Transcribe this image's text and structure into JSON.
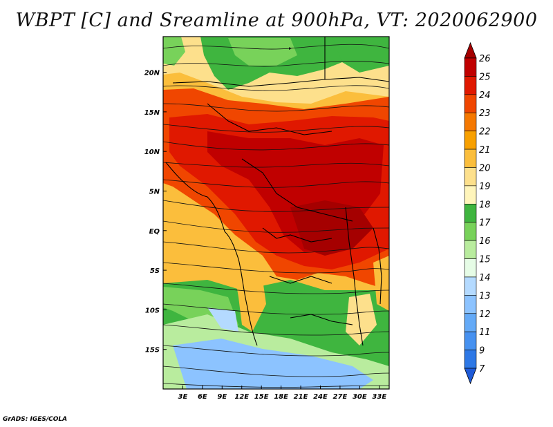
{
  "title": "WBPT [C] and Sreamline at 900hPa, VT: 2020062900",
  "footer": "GrADS: IGES/COLA",
  "map": {
    "lat_range": [
      -20,
      24.5
    ],
    "lon_range": [
      0,
      34.5
    ],
    "lat_ticks": [
      {
        "value": 20,
        "label": "20N"
      },
      {
        "value": 15,
        "label": "15N"
      },
      {
        "value": 10,
        "label": "10N"
      },
      {
        "value": 5,
        "label": "5N"
      },
      {
        "value": 0,
        "label": "EQ"
      },
      {
        "value": -5,
        "label": "5S"
      },
      {
        "value": -10,
        "label": "10S"
      },
      {
        "value": -15,
        "label": "15S"
      }
    ],
    "lon_ticks": [
      {
        "value": 3,
        "label": "3E"
      },
      {
        "value": 6,
        "label": "6E"
      },
      {
        "value": 9,
        "label": "9E"
      },
      {
        "value": 12,
        "label": "12E"
      },
      {
        "value": 15,
        "label": "15E"
      },
      {
        "value": 18,
        "label": "18E"
      },
      {
        "value": 21,
        "label": "21E"
      },
      {
        "value": 24,
        "label": "24E"
      },
      {
        "value": 27,
        "label": "27E"
      },
      {
        "value": 30,
        "label": "30E"
      },
      {
        "value": 33,
        "label": "33E"
      }
    ]
  },
  "colorbar": {
    "levels": [
      {
        "label": "26",
        "color": "#a50000"
      },
      {
        "label": "25",
        "color": "#c00000"
      },
      {
        "label": "24",
        "color": "#e01800"
      },
      {
        "label": "23",
        "color": "#f04600"
      },
      {
        "label": "22",
        "color": "#f57800"
      },
      {
        "label": "21",
        "color": "#f8a000"
      },
      {
        "label": "20",
        "color": "#fbbe3c"
      },
      {
        "label": "19",
        "color": "#fde08c"
      },
      {
        "label": "18",
        "color": "#fff5bb"
      },
      {
        "label": "17",
        "color": "#3fb53f"
      },
      {
        "label": "16",
        "color": "#78d25a"
      },
      {
        "label": "15",
        "color": "#b9ec9e"
      },
      {
        "label": "14",
        "color": "#e6fce6"
      },
      {
        "label": "13",
        "color": "#b4daff"
      },
      {
        "label": "12",
        "color": "#8cc3ff"
      },
      {
        "label": "11",
        "color": "#64aaf7"
      },
      {
        "label": "9",
        "color": "#4691f0"
      },
      {
        "label": "7",
        "color": "#2d78e6"
      }
    ],
    "bottom_color": "#1e5ad7"
  }
}
